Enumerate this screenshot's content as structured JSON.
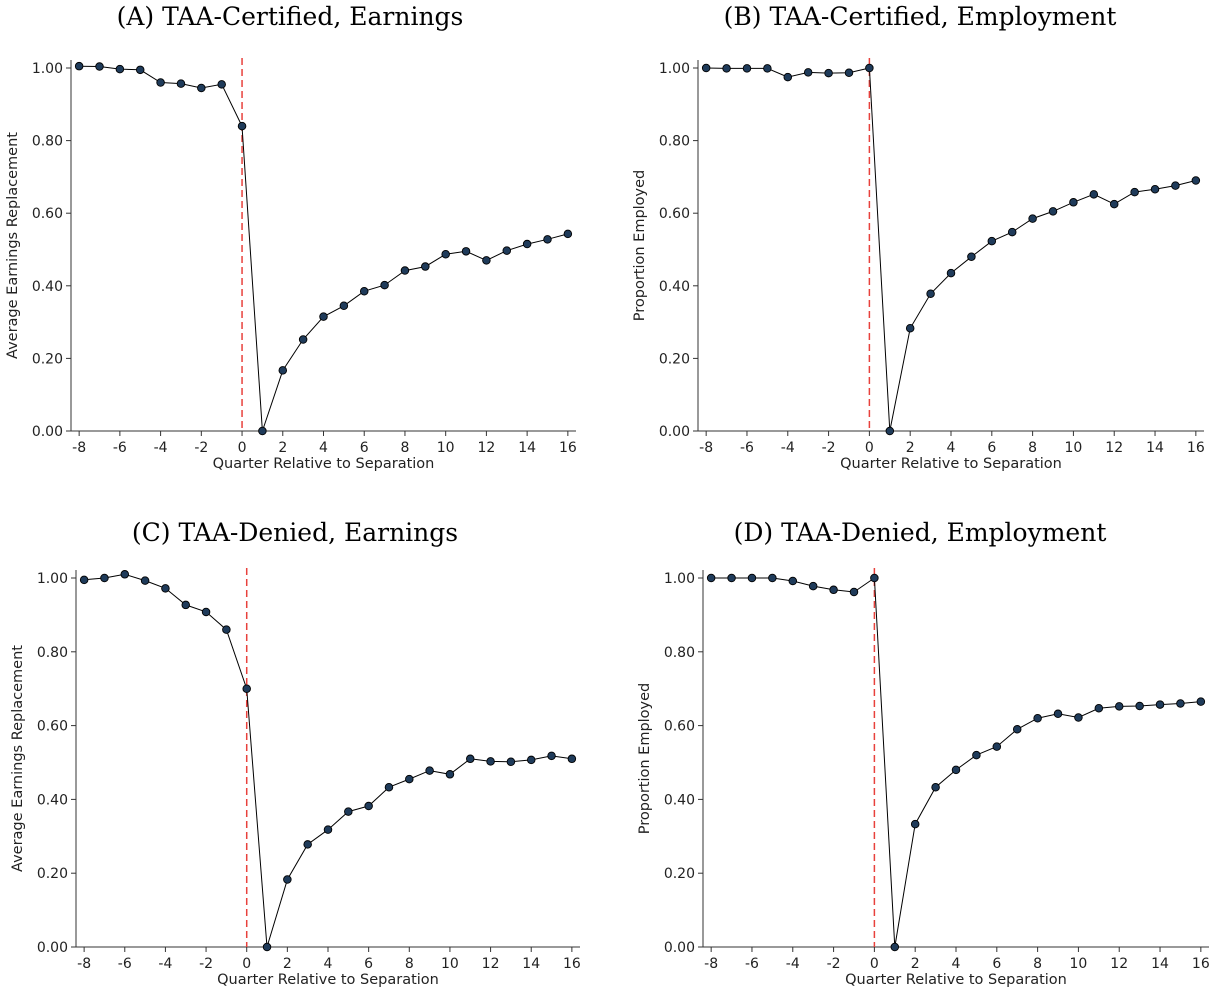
{
  "accent": {
    "line": "#000000",
    "marker_fill": "#1f3b5a",
    "marker_edge": "#000000",
    "event_line": "#e8413c"
  },
  "chart_data": [
    {
      "id": "A",
      "type": "line",
      "title": "(A) TAA-Certified, Earnings",
      "xlabel": "Quarter Relative to Separation",
      "ylabel": "Average Earnings Replacement",
      "xlim": [
        -8,
        16
      ],
      "ylim": [
        0,
        1
      ],
      "xticks": [
        "-8",
        "-6",
        "-4",
        "-2",
        "0",
        "2",
        "4",
        "6",
        "8",
        "10",
        "12",
        "14",
        "16"
      ],
      "yticks": [
        "0.00",
        "0.20",
        "0.40",
        "0.60",
        "0.80",
        "1.00"
      ],
      "vline_x": 0,
      "x": [
        -8,
        -7,
        -6,
        -5,
        -4,
        -3,
        -2,
        -1,
        0,
        1,
        2,
        3,
        4,
        5,
        6,
        7,
        8,
        9,
        10,
        11,
        12,
        13,
        14,
        15,
        16
      ],
      "y": [
        1.005,
        1.004,
        0.997,
        0.995,
        0.96,
        0.957,
        0.945,
        0.955,
        0.84,
        0.0,
        0.167,
        0.252,
        0.315,
        0.345,
        0.385,
        0.402,
        0.442,
        0.453,
        0.487,
        0.495,
        0.47,
        0.497,
        0.515,
        0.528,
        0.543
      ]
    },
    {
      "id": "B",
      "type": "line",
      "title": "(B) TAA-Certified, Employment",
      "xlabel": "Quarter Relative to Separation",
      "ylabel": "Proportion Employed",
      "xlim": [
        -8,
        16
      ],
      "ylim": [
        0,
        1
      ],
      "xticks": [
        "-8",
        "-6",
        "-4",
        "-2",
        "0",
        "2",
        "4",
        "6",
        "8",
        "10",
        "12",
        "14",
        "16"
      ],
      "yticks": [
        "0.00",
        "0.20",
        "0.40",
        "0.60",
        "0.80",
        "1.00"
      ],
      "vline_x": 0,
      "x": [
        -8,
        -7,
        -6,
        -5,
        -4,
        -3,
        -2,
        -1,
        0,
        1,
        2,
        3,
        4,
        5,
        6,
        7,
        8,
        9,
        10,
        11,
        12,
        13,
        14,
        15,
        16
      ],
      "y": [
        1.0,
        0.999,
        0.999,
        0.999,
        0.975,
        0.988,
        0.986,
        0.987,
        1.0,
        0.0,
        0.283,
        0.378,
        0.435,
        0.48,
        0.523,
        0.548,
        0.585,
        0.605,
        0.63,
        0.652,
        0.625,
        0.658,
        0.666,
        0.676,
        0.69
      ]
    },
    {
      "id": "C",
      "type": "line",
      "title": "(C) TAA-Denied, Earnings",
      "xlabel": "Quarter Relative to Separation",
      "ylabel": "Average Earnings Replacement",
      "xlim": [
        -8,
        16
      ],
      "ylim": [
        0,
        1
      ],
      "xticks": [
        "-8",
        "-6",
        "-4",
        "-2",
        "0",
        "2",
        "4",
        "6",
        "8",
        "10",
        "12",
        "14",
        "16"
      ],
      "yticks": [
        "0.00",
        "0.20",
        "0.40",
        "0.60",
        "0.80",
        "1.00"
      ],
      "vline_x": 0,
      "x": [
        -8,
        -7,
        -6,
        -5,
        -4,
        -3,
        -2,
        -1,
        0,
        1,
        2,
        3,
        4,
        5,
        6,
        7,
        8,
        9,
        10,
        11,
        12,
        13,
        14,
        15,
        16
      ],
      "y": [
        0.995,
        1.0,
        1.01,
        0.993,
        0.972,
        0.927,
        0.908,
        0.86,
        0.7,
        0.0,
        0.183,
        0.278,
        0.318,
        0.367,
        0.382,
        0.433,
        0.455,
        0.478,
        0.468,
        0.51,
        0.503,
        0.502,
        0.507,
        0.518,
        0.51
      ]
    },
    {
      "id": "D",
      "type": "line",
      "title": "(D) TAA-Denied, Employment",
      "xlabel": "Quarter Relative to Separation",
      "ylabel": "Proportion Employed",
      "xlim": [
        -8,
        16
      ],
      "ylim": [
        0,
        1
      ],
      "xticks": [
        "-8",
        "-6",
        "-4",
        "-2",
        "0",
        "2",
        "4",
        "6",
        "8",
        "10",
        "12",
        "14",
        "16"
      ],
      "yticks": [
        "0.00",
        "0.20",
        "0.40",
        "0.60",
        "0.80",
        "1.00"
      ],
      "vline_x": 0,
      "x": [
        -8,
        -7,
        -6,
        -5,
        -4,
        -3,
        -2,
        -1,
        0,
        1,
        2,
        3,
        4,
        5,
        6,
        7,
        8,
        9,
        10,
        11,
        12,
        13,
        14,
        15,
        16
      ],
      "y": [
        1.0,
        1.0,
        1.0,
        1.0,
        0.992,
        0.978,
        0.968,
        0.962,
        1.0,
        0.0,
        0.333,
        0.433,
        0.48,
        0.52,
        0.543,
        0.59,
        0.62,
        0.632,
        0.622,
        0.647,
        0.652,
        0.653,
        0.657,
        0.66,
        0.665
      ]
    }
  ]
}
